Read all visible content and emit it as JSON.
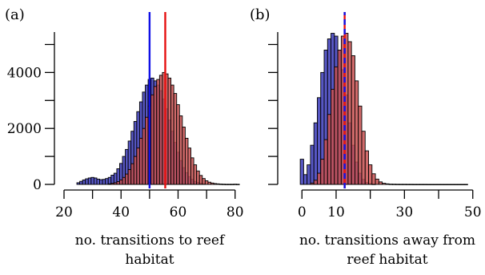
{
  "colors": {
    "blue_bar": "#3a3ab8",
    "red_bar": "#c85050",
    "blue_line": "#1010e6",
    "red_line": "#e61010",
    "edge": "#000000"
  },
  "chart_data": [
    {
      "type": "bar",
      "panel_label": "(a)",
      "xlabel_lines": [
        "no. transitions to reef",
        "habitat"
      ],
      "ylabel": "",
      "xlim": [
        20,
        84
      ],
      "ylim": [
        0,
        5100
      ],
      "xticks": [
        "20",
        "40",
        "60",
        "80"
      ],
      "xtick_values": [
        20,
        40,
        60,
        80
      ],
      "yticks": [
        "0",
        "2000",
        "4000"
      ],
      "ytick_values": [
        0,
        2000,
        4000
      ],
      "bin_width": 1,
      "blue_counts": [
        [
          25,
          60
        ],
        [
          26,
          110
        ],
        [
          27,
          160
        ],
        [
          28,
          200
        ],
        [
          29,
          230
        ],
        [
          30,
          250
        ],
        [
          31,
          230
        ],
        [
          32,
          190
        ],
        [
          33,
          170
        ],
        [
          34,
          180
        ],
        [
          35,
          210
        ],
        [
          36,
          250
        ],
        [
          37,
          330
        ],
        [
          38,
          400
        ],
        [
          39,
          560
        ],
        [
          40,
          750
        ],
        [
          41,
          1000
        ],
        [
          42,
          1250
        ],
        [
          43,
          1550
        ],
        [
          44,
          1900
        ],
        [
          45,
          2250
        ],
        [
          46,
          2600
        ],
        [
          47,
          2950
        ],
        [
          48,
          3300
        ],
        [
          49,
          3550
        ],
        [
          50,
          3750
        ],
        [
          51,
          3800
        ],
        [
          52,
          3700
        ],
        [
          53,
          3550
        ],
        [
          54,
          3350
        ],
        [
          55,
          3050
        ],
        [
          56,
          2700
        ],
        [
          57,
          2300
        ],
        [
          58,
          1900
        ],
        [
          59,
          1500
        ],
        [
          60,
          1150
        ],
        [
          61,
          850
        ],
        [
          62,
          600
        ],
        [
          63,
          420
        ],
        [
          64,
          280
        ],
        [
          65,
          180
        ],
        [
          66,
          110
        ],
        [
          67,
          70
        ],
        [
          68,
          40
        ],
        [
          69,
          20
        ]
      ],
      "red_counts": [
        [
          36,
          20
        ],
        [
          37,
          40
        ],
        [
          38,
          60
        ],
        [
          39,
          100
        ],
        [
          40,
          160
        ],
        [
          41,
          250
        ],
        [
          42,
          370
        ],
        [
          43,
          530
        ],
        [
          44,
          740
        ],
        [
          45,
          1000
        ],
        [
          46,
          1300
        ],
        [
          47,
          1650
        ],
        [
          48,
          2000
        ],
        [
          49,
          2400
        ],
        [
          50,
          2800
        ],
        [
          51,
          3200
        ],
        [
          52,
          3500
        ],
        [
          53,
          3750
        ],
        [
          54,
          3900
        ],
        [
          55,
          4000
        ],
        [
          56,
          3950
        ],
        [
          57,
          3800
        ],
        [
          58,
          3550
        ],
        [
          59,
          3250
        ],
        [
          60,
          2850
        ],
        [
          61,
          2450
        ],
        [
          62,
          2050
        ],
        [
          63,
          1650
        ],
        [
          64,
          1300
        ],
        [
          65,
          950
        ],
        [
          66,
          700
        ],
        [
          67,
          480
        ],
        [
          68,
          320
        ],
        [
          69,
          210
        ],
        [
          70,
          130
        ],
        [
          71,
          80
        ],
        [
          72,
          50
        ],
        [
          73,
          30
        ],
        [
          74,
          20
        ],
        [
          75,
          12
        ],
        [
          76,
          8
        ],
        [
          77,
          5
        ],
        [
          78,
          5
        ],
        [
          79,
          5
        ],
        [
          80,
          8
        ],
        [
          81,
          5
        ]
      ],
      "blue_line_x": 50,
      "red_line_x": 55.5,
      "grid": false,
      "legend": "none"
    },
    {
      "type": "bar",
      "panel_label": "(b)",
      "xlabel_lines": [
        "no. transitions away from",
        "reef habitat"
      ],
      "ylabel": "",
      "xlim": [
        -1,
        51
      ],
      "ylim": [
        0,
        5100
      ],
      "xticks": [
        "0",
        "10",
        "30",
        "50"
      ],
      "xtick_values": [
        0,
        10,
        30,
        50
      ],
      "yticks": [],
      "ytick_values": [
        0,
        2000,
        4000
      ],
      "bin_width": 1,
      "blue_counts": [
        [
          0,
          900
        ],
        [
          1,
          350
        ],
        [
          2,
          700
        ],
        [
          3,
          1400
        ],
        [
          4,
          2200
        ],
        [
          5,
          3100
        ],
        [
          6,
          4000
        ],
        [
          7,
          4800
        ],
        [
          8,
          5200
        ],
        [
          9,
          5400
        ],
        [
          10,
          5300
        ],
        [
          11,
          4800
        ],
        [
          12,
          4100
        ],
        [
          13,
          3200
        ],
        [
          14,
          2200
        ],
        [
          15,
          1400
        ],
        [
          16,
          800
        ],
        [
          17,
          400
        ],
        [
          18,
          180
        ],
        [
          19,
          70
        ],
        [
          20,
          25
        ],
        [
          21,
          10
        ]
      ],
      "red_counts": [
        [
          3,
          50
        ],
        [
          4,
          150
        ],
        [
          5,
          400
        ],
        [
          6,
          900
        ],
        [
          7,
          1600
        ],
        [
          8,
          2500
        ],
        [
          9,
          3400
        ],
        [
          10,
          4200
        ],
        [
          11,
          4800
        ],
        [
          12,
          5300
        ],
        [
          13,
          5400
        ],
        [
          14,
          5100
        ],
        [
          15,
          4600
        ],
        [
          16,
          3700
        ],
        [
          17,
          2800
        ],
        [
          18,
          1900
        ],
        [
          19,
          1200
        ],
        [
          20,
          700
        ],
        [
          21,
          380
        ],
        [
          22,
          190
        ],
        [
          23,
          90
        ],
        [
          24,
          40
        ],
        [
          25,
          20
        ],
        [
          26,
          10
        ],
        [
          27,
          8
        ],
        [
          28,
          6
        ],
        [
          29,
          5
        ],
        [
          30,
          5
        ],
        [
          31,
          4
        ],
        [
          32,
          4
        ],
        [
          33,
          3
        ],
        [
          34,
          3
        ],
        [
          35,
          3
        ],
        [
          36,
          3
        ],
        [
          37,
          2
        ],
        [
          38,
          2
        ],
        [
          39,
          2
        ],
        [
          40,
          2
        ],
        [
          41,
          2
        ],
        [
          42,
          2
        ],
        [
          43,
          2
        ],
        [
          44,
          2
        ],
        [
          45,
          2
        ],
        [
          46,
          2
        ],
        [
          47,
          2
        ],
        [
          48,
          2
        ]
      ],
      "blue_line_x": 12.5,
      "red_line_x": 12.5,
      "line_style": "dashed",
      "grid": false,
      "legend": "none"
    }
  ]
}
